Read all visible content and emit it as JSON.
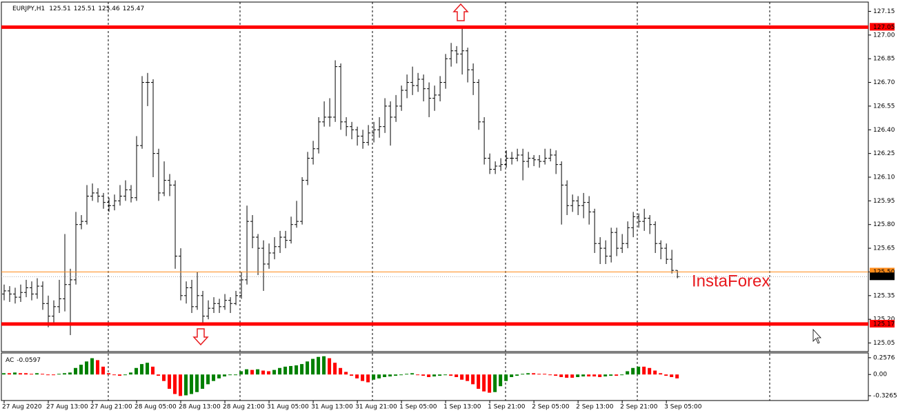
{
  "chart_data": [
    {
      "type": "ohlc",
      "title": "EURJPY,H1",
      "header_ohlc": [
        125.51,
        125.51,
        125.46,
        125.47
      ],
      "watermark": "InstaForex",
      "color": "#000000",
      "xlim": [
        -0.5,
        156.6
      ],
      "ylim": [
        125.0,
        127.2
      ],
      "yticks": [
        125.05,
        {
          "value": 125.2,
          "label": "125.20"
        },
        125.35,
        {
          "value": 125.5,
          "label": "125.50"
        },
        125.65,
        {
          "value": 125.8,
          "label": "125.80"
        },
        125.95,
        {
          "value": 126.1,
          "label": "126.10"
        },
        126.25,
        {
          "value": 126.4,
          "label": "126.40"
        },
        126.55,
        {
          "value": 126.7,
          "label": "126.70"
        },
        126.85,
        {
          "value": 127.0,
          "label": "127.00"
        },
        127.15
      ],
      "levels": [
        {
          "value": 127.05,
          "color": "#ff0000"
        },
        {
          "value": 125.17,
          "color": "#ff0000"
        }
      ],
      "ask_line": {
        "value": 125.5,
        "label": "125.50",
        "color": "#ff8c1a"
      },
      "open": [
        125.36,
        125.38,
        125.36,
        125.34,
        125.37,
        125.4,
        125.36,
        125.41,
        125.3,
        125.22,
        125.28,
        125.33,
        125.42,
        125.45,
        125.8,
        125.82,
        125.98,
        126.0,
        125.98,
        125.94,
        125.92,
        125.95,
        125.98,
        126.02,
        125.97,
        126.3,
        126.7,
        126.7,
        126.25,
        126.0,
        126.08,
        126.05,
        125.6,
        125.35,
        125.4,
        125.28,
        125.35,
        125.22,
        125.27,
        125.3,
        125.28,
        125.32,
        125.3,
        125.35,
        125.45,
        125.82,
        125.72,
        125.65,
        125.55,
        125.62,
        125.66,
        125.72,
        125.7,
        125.8,
        125.82,
        126.08,
        126.22,
        126.28,
        126.45,
        126.48,
        126.48,
        126.8,
        126.45,
        126.42,
        126.4,
        126.36,
        126.32,
        126.38,
        126.4,
        126.42,
        126.55,
        126.48,
        126.55,
        126.65,
        126.7,
        126.68,
        126.72,
        126.66,
        126.6,
        126.62,
        126.7,
        126.85,
        126.9,
        126.88,
        126.9,
        126.78,
        126.7,
        126.45,
        126.22,
        126.15,
        126.17,
        126.18,
        126.22,
        126.22,
        126.24,
        126.2,
        126.22,
        126.21,
        126.2,
        126.22,
        126.24,
        126.18,
        126.05,
        125.92,
        125.95,
        125.92,
        125.94,
        125.88,
        125.68,
        125.65,
        125.6,
        125.75,
        125.65,
        125.68,
        125.78,
        125.85,
        125.82,
        125.84,
        125.8,
        125.68,
        125.65,
        125.58,
        125.51
      ],
      "high": [
        125.42,
        125.41,
        125.4,
        125.42,
        125.45,
        125.44,
        125.46,
        125.44,
        125.35,
        125.32,
        125.45,
        125.74,
        125.52,
        125.88,
        125.86,
        126.05,
        126.06,
        126.03,
        126.0,
        125.97,
        125.99,
        126.05,
        126.08,
        126.05,
        126.36,
        126.74,
        126.76,
        126.72,
        126.28,
        126.2,
        126.12,
        126.08,
        125.65,
        125.44,
        125.45,
        125.5,
        125.38,
        125.32,
        125.34,
        125.33,
        125.36,
        125.34,
        125.38,
        125.5,
        125.92,
        125.86,
        125.74,
        125.7,
        125.68,
        125.72,
        125.76,
        125.76,
        125.85,
        125.95,
        126.1,
        126.26,
        126.33,
        126.48,
        126.58,
        126.6,
        126.84,
        126.82,
        126.48,
        126.45,
        126.42,
        126.4,
        126.43,
        126.45,
        126.48,
        126.6,
        126.58,
        126.62,
        126.68,
        126.75,
        126.8,
        126.76,
        126.75,
        126.7,
        126.68,
        126.74,
        126.88,
        126.95,
        126.93,
        127.05,
        126.92,
        126.82,
        126.72,
        126.48,
        126.25,
        126.2,
        126.22,
        126.27,
        126.26,
        126.28,
        126.28,
        126.26,
        126.24,
        126.24,
        126.28,
        126.28,
        126.27,
        126.2,
        126.08,
        125.99,
        125.98,
        126.0,
        125.98,
        125.9,
        125.72,
        125.7,
        125.78,
        125.78,
        125.74,
        125.82,
        125.88,
        125.87,
        125.9,
        125.86,
        125.82,
        125.7,
        125.68,
        125.64,
        125.51
      ],
      "low": [
        125.32,
        125.31,
        125.3,
        125.31,
        125.34,
        125.32,
        125.33,
        125.26,
        125.15,
        125.18,
        125.24,
        125.25,
        125.1,
        125.42,
        125.77,
        125.8,
        125.95,
        125.94,
        125.9,
        125.88,
        125.89,
        125.92,
        125.95,
        125.94,
        125.95,
        126.28,
        126.55,
        126.1,
        125.95,
        125.98,
        125.98,
        125.52,
        125.32,
        125.3,
        125.24,
        125.26,
        125.18,
        125.2,
        125.24,
        125.24,
        125.26,
        125.24,
        125.29,
        125.33,
        125.42,
        125.65,
        125.48,
        125.38,
        125.52,
        125.58,
        125.62,
        125.65,
        125.68,
        125.78,
        125.8,
        126.05,
        126.18,
        126.25,
        126.42,
        126.42,
        126.45,
        126.4,
        126.36,
        126.34,
        126.3,
        126.28,
        126.3,
        126.32,
        126.35,
        126.38,
        126.3,
        126.45,
        126.52,
        126.6,
        126.62,
        126.64,
        126.58,
        126.48,
        126.52,
        126.58,
        126.66,
        126.8,
        126.82,
        126.75,
        126.7,
        126.62,
        126.4,
        126.18,
        126.12,
        126.12,
        126.14,
        126.16,
        126.18,
        126.2,
        126.08,
        126.16,
        126.17,
        126.16,
        126.18,
        126.2,
        126.12,
        125.8,
        125.86,
        125.88,
        125.86,
        125.84,
        125.8,
        125.62,
        125.55,
        125.55,
        125.56,
        125.6,
        125.62,
        125.65,
        125.72,
        125.78,
        125.76,
        125.74,
        125.62,
        125.58,
        125.55,
        125.49,
        125.46
      ],
      "close": [
        125.38,
        125.36,
        125.34,
        125.37,
        125.4,
        125.36,
        125.41,
        125.3,
        125.22,
        125.28,
        125.33,
        125.42,
        125.45,
        125.8,
        125.82,
        125.98,
        126.0,
        125.98,
        125.94,
        125.92,
        125.95,
        125.98,
        126.02,
        125.97,
        126.3,
        126.7,
        126.7,
        126.25,
        126.0,
        126.08,
        126.05,
        125.6,
        125.35,
        125.4,
        125.28,
        125.35,
        125.22,
        125.27,
        125.3,
        125.28,
        125.32,
        125.3,
        125.35,
        125.45,
        125.82,
        125.72,
        125.65,
        125.55,
        125.62,
        125.66,
        125.72,
        125.7,
        125.8,
        125.82,
        126.08,
        126.22,
        126.28,
        126.45,
        126.48,
        126.48,
        126.8,
        126.45,
        126.42,
        126.4,
        126.36,
        126.32,
        126.38,
        126.4,
        126.42,
        126.55,
        126.48,
        126.55,
        126.65,
        126.7,
        126.68,
        126.72,
        126.66,
        126.6,
        126.62,
        126.7,
        126.85,
        126.9,
        126.88,
        126.9,
        126.78,
        126.7,
        126.45,
        126.22,
        126.15,
        126.17,
        126.18,
        126.22,
        126.22,
        126.24,
        126.2,
        126.22,
        126.21,
        126.2,
        126.22,
        126.24,
        126.18,
        126.05,
        125.92,
        125.95,
        125.92,
        125.94,
        125.88,
        125.68,
        125.65,
        125.6,
        125.75,
        125.65,
        125.68,
        125.78,
        125.85,
        125.82,
        125.84,
        125.8,
        125.68,
        125.65,
        125.58,
        125.51,
        125.47
      ]
    },
    {
      "type": "bar",
      "title": "AC",
      "up_color": "#008000",
      "down_color": "#ff0000",
      "xlim": [
        -0.5,
        156.6
      ],
      "ylim": [
        -0.4,
        0.32
      ],
      "yticks": [
        0.2576,
        {
          "value": 0,
          "label": "0.00"
        },
        -0.3265
      ],
      "xticks": [
        {
          "value": 0,
          "label": "27 Aug 2020"
        },
        {
          "value": 8,
          "label": "27 Aug 13:00"
        },
        {
          "value": 16,
          "label": "27 Aug 21:00"
        },
        {
          "value": 24,
          "label": "28 Aug 05:00"
        },
        {
          "value": 32,
          "label": "28 Aug 13:00"
        },
        {
          "value": 40,
          "label": "28 Aug 21:00"
        },
        {
          "value": 48,
          "label": "31 Aug 05:00"
        },
        {
          "value": 56,
          "label": "31 Aug 13:00"
        },
        {
          "value": 64,
          "label": "31 Aug 21:00"
        },
        {
          "value": 72,
          "label": "1 Sep 05:00"
        },
        {
          "value": 80,
          "label": "1 Sep 13:00"
        },
        {
          "value": 88,
          "label": "1 Sep 21:00"
        },
        {
          "value": 96,
          "label": "2 Sep 05:00"
        },
        {
          "value": 104,
          "label": "2 Sep 13:00"
        },
        {
          "value": 112,
          "label": "2 Sep 21:00"
        },
        {
          "value": 120,
          "label": "3 Sep 05:00"
        }
      ],
      "values": [
        0.02,
        0.02,
        0.03,
        0.02,
        0.02,
        0.01,
        0.02,
        0.01,
        0.0,
        0.0,
        0.01,
        0.02,
        0.03,
        0.1,
        0.15,
        0.2,
        0.25,
        0.22,
        0.12,
        0.02,
        -0.01,
        -0.02,
        0.0,
        0.03,
        0.1,
        0.16,
        0.18,
        0.12,
        -0.02,
        -0.1,
        -0.22,
        -0.3,
        -0.33,
        -0.32,
        -0.3,
        -0.27,
        -0.22,
        -0.15,
        -0.1,
        -0.06,
        -0.03,
        -0.01,
        0.0,
        0.05,
        0.08,
        0.07,
        0.08,
        0.06,
        0.05,
        0.07,
        0.1,
        0.12,
        0.13,
        0.14,
        0.16,
        0.2,
        0.24,
        0.27,
        0.28,
        0.25,
        0.18,
        0.1,
        0.04,
        -0.02,
        -0.06,
        -0.1,
        -0.12,
        -0.08,
        -0.06,
        -0.04,
        -0.03,
        -0.02,
        0.0,
        0.01,
        0.02,
        0.0,
        -0.02,
        -0.04,
        -0.03,
        -0.02,
        -0.01,
        -0.02,
        -0.04,
        -0.08,
        -0.1,
        -0.15,
        -0.22,
        -0.26,
        -0.28,
        -0.27,
        -0.18,
        -0.1,
        -0.04,
        -0.02,
        0.01,
        0.02,
        0.02,
        0.01,
        0.01,
        0.0,
        -0.02,
        -0.04,
        -0.05,
        -0.05,
        -0.04,
        -0.03,
        -0.03,
        -0.03,
        -0.04,
        -0.03,
        -0.02,
        -0.02,
        -0.01,
        0.05,
        0.1,
        0.12,
        0.12,
        0.1,
        0.06,
        0.02,
        -0.02,
        -0.04,
        -0.0597
      ]
    }
  ]
}
